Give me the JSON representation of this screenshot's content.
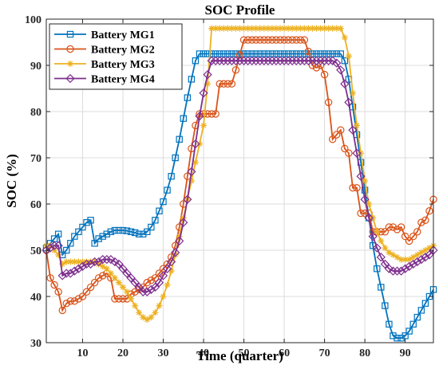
{
  "chart_data": {
    "type": "line",
    "title": "SOC Profile",
    "xlabel": "Time (quarter)",
    "ylabel": "SOC (%)",
    "xlim": [
      1,
      97
    ],
    "ylim": [
      30,
      100
    ],
    "xticks": [
      10,
      20,
      30,
      40,
      50,
      60,
      70,
      80,
      90
    ],
    "yticks": [
      30,
      40,
      50,
      60,
      70,
      80,
      90,
      100
    ],
    "grid": true,
    "legend_position": "top-left",
    "series": [
      {
        "name": "Battery MG1",
        "color": "#0072BD",
        "marker": "square",
        "keypoints": [
          [
            1,
            50.5
          ],
          [
            2,
            51.5
          ],
          [
            3,
            52.5
          ],
          [
            4,
            53.5
          ],
          [
            5,
            49
          ],
          [
            6,
            50
          ],
          [
            7,
            51.5
          ],
          [
            8,
            53
          ],
          [
            9,
            54
          ],
          [
            10,
            55
          ],
          [
            11,
            56
          ],
          [
            12,
            56.5
          ],
          [
            13,
            51.5
          ],
          [
            14,
            52.5
          ],
          [
            15,
            53
          ],
          [
            16,
            53.5
          ],
          [
            17,
            54
          ],
          [
            18,
            54.3
          ],
          [
            19,
            54.3
          ],
          [
            20,
            54.3
          ],
          [
            21,
            54.2
          ],
          [
            22,
            54
          ],
          [
            23,
            53.8
          ],
          [
            24,
            53.5
          ],
          [
            25,
            53.5
          ],
          [
            26,
            54
          ],
          [
            27,
            55
          ],
          [
            28,
            56.5
          ],
          [
            29,
            58.5
          ],
          [
            30,
            60.5
          ],
          [
            31,
            63
          ],
          [
            32,
            66
          ],
          [
            33,
            70
          ],
          [
            34,
            74
          ],
          [
            35,
            78.5
          ],
          [
            36,
            83
          ],
          [
            37,
            87
          ],
          [
            38,
            91
          ],
          [
            39,
            92.5
          ],
          [
            40,
            92.5
          ],
          [
            74,
            92.5
          ],
          [
            75,
            91
          ],
          [
            76,
            87
          ],
          [
            77,
            81
          ],
          [
            78,
            75
          ],
          [
            79,
            69
          ],
          [
            80,
            63
          ],
          [
            81,
            57
          ],
          [
            82,
            51
          ],
          [
            83,
            46
          ],
          [
            84,
            42
          ],
          [
            85,
            38
          ],
          [
            86,
            34
          ],
          [
            87,
            31.5
          ],
          [
            88,
            31
          ],
          [
            89,
            31
          ],
          [
            90,
            31.5
          ],
          [
            91,
            32.5
          ],
          [
            92,
            34
          ],
          [
            93,
            35.5
          ],
          [
            94,
            37
          ],
          [
            95,
            38.5
          ],
          [
            96,
            40
          ],
          [
            97,
            41.5
          ]
        ]
      },
      {
        "name": "Battery MG2",
        "color": "#D95319",
        "marker": "circle",
        "keypoints": [
          [
            1,
            50
          ],
          [
            2,
            44
          ],
          [
            3,
            42.5
          ],
          [
            4,
            41
          ],
          [
            5,
            37
          ],
          [
            6,
            38.5
          ],
          [
            7,
            39
          ],
          [
            8,
            39
          ],
          [
            9,
            39.5
          ],
          [
            10,
            40
          ],
          [
            11,
            41
          ],
          [
            12,
            42
          ],
          [
            13,
            43
          ],
          [
            14,
            44
          ],
          [
            15,
            44.5
          ],
          [
            16,
            45
          ],
          [
            17,
            44
          ],
          [
            18,
            39.5
          ],
          [
            19,
            39.5
          ],
          [
            20,
            39.5
          ],
          [
            21,
            39.5
          ],
          [
            22,
            40.5
          ],
          [
            23,
            41
          ],
          [
            24,
            41.5
          ],
          [
            25,
            42
          ],
          [
            26,
            43
          ],
          [
            27,
            43.5
          ],
          [
            28,
            44
          ],
          [
            29,
            45
          ],
          [
            30,
            46
          ],
          [
            31,
            47
          ],
          [
            32,
            48.5
          ],
          [
            33,
            51
          ],
          [
            34,
            55
          ],
          [
            35,
            60
          ],
          [
            36,
            66
          ],
          [
            37,
            72
          ],
          [
            38,
            77
          ],
          [
            39,
            79.5
          ],
          [
            43,
            79.5
          ],
          [
            44,
            86
          ],
          [
            47,
            86
          ],
          [
            48,
            89
          ],
          [
            50,
            95.5
          ],
          [
            65,
            95.5
          ],
          [
            66,
            93
          ],
          [
            67,
            90
          ],
          [
            68,
            89.5
          ],
          [
            69,
            90
          ],
          [
            70,
            88
          ],
          [
            71,
            82
          ],
          [
            72,
            74
          ],
          [
            73,
            75
          ],
          [
            74,
            76
          ],
          [
            75,
            72
          ],
          [
            76,
            71
          ],
          [
            77,
            63.5
          ],
          [
            78,
            63.5
          ],
          [
            79,
            58
          ],
          [
            81,
            58
          ],
          [
            82,
            54
          ],
          [
            85,
            54
          ],
          [
            86,
            55
          ],
          [
            87,
            55
          ],
          [
            88,
            54.5
          ],
          [
            89,
            55
          ],
          [
            90,
            53
          ],
          [
            91,
            52
          ],
          [
            92,
            53
          ],
          [
            93,
            54
          ],
          [
            94,
            56
          ],
          [
            95,
            56.5
          ],
          [
            96,
            58.5
          ],
          [
            97,
            61
          ]
        ]
      },
      {
        "name": "Battery MG3",
        "color": "#EDB120",
        "marker": "asterisk",
        "keypoints": [
          [
            1,
            51
          ],
          [
            2,
            51
          ],
          [
            3,
            50
          ],
          [
            4,
            49
          ],
          [
            5,
            47
          ],
          [
            6,
            47.5
          ],
          [
            7,
            47.5
          ],
          [
            8,
            47.5
          ],
          [
            9,
            47.5
          ],
          [
            10,
            47.5
          ],
          [
            11,
            47.5
          ],
          [
            12,
            47.5
          ],
          [
            13,
            47.5
          ],
          [
            14,
            47
          ],
          [
            15,
            46.5
          ],
          [
            16,
            46
          ],
          [
            17,
            45
          ],
          [
            18,
            44
          ],
          [
            19,
            43
          ],
          [
            20,
            42
          ],
          [
            21,
            41
          ],
          [
            22,
            39.5
          ],
          [
            23,
            38
          ],
          [
            24,
            36.5
          ],
          [
            25,
            35.5
          ],
          [
            26,
            35
          ],
          [
            27,
            35.5
          ],
          [
            28,
            36.5
          ],
          [
            29,
            38
          ],
          [
            30,
            40
          ],
          [
            31,
            42.5
          ],
          [
            32,
            45.5
          ],
          [
            33,
            49
          ],
          [
            34,
            53
          ],
          [
            35,
            57
          ],
          [
            36,
            61
          ],
          [
            37,
            65
          ],
          [
            38,
            69
          ],
          [
            39,
            73
          ],
          [
            40,
            77
          ],
          [
            41,
            86
          ],
          [
            42,
            98
          ],
          [
            74,
            98
          ],
          [
            75,
            96
          ],
          [
            76,
            92
          ],
          [
            77,
            84
          ],
          [
            78,
            77
          ],
          [
            79,
            71
          ],
          [
            80,
            65
          ],
          [
            81,
            60
          ],
          [
            82,
            57
          ],
          [
            83,
            54
          ],
          [
            84,
            52
          ],
          [
            85,
            50.5
          ],
          [
            86,
            49.5
          ],
          [
            87,
            49
          ],
          [
            88,
            48.5
          ],
          [
            89,
            48
          ],
          [
            90,
            48
          ],
          [
            91,
            48
          ],
          [
            92,
            48.5
          ],
          [
            93,
            49
          ],
          [
            94,
            49.5
          ],
          [
            95,
            50
          ],
          [
            96,
            50.5
          ],
          [
            97,
            51
          ]
        ]
      },
      {
        "name": "Battery MG4",
        "color": "#7E2F8E",
        "marker": "diamond",
        "keypoints": [
          [
            1,
            50
          ],
          [
            2,
            50.5
          ],
          [
            3,
            51
          ],
          [
            4,
            51
          ],
          [
            5,
            44.5
          ],
          [
            6,
            45
          ],
          [
            7,
            45
          ],
          [
            8,
            45.5
          ],
          [
            9,
            46
          ],
          [
            10,
            46.5
          ],
          [
            11,
            47
          ],
          [
            12,
            47
          ],
          [
            13,
            47.5
          ],
          [
            14,
            47.5
          ],
          [
            15,
            48
          ],
          [
            16,
            48
          ],
          [
            17,
            48
          ],
          [
            18,
            47.5
          ],
          [
            19,
            47
          ],
          [
            20,
            46
          ],
          [
            21,
            45
          ],
          [
            22,
            44
          ],
          [
            23,
            43
          ],
          [
            24,
            42
          ],
          [
            25,
            41
          ],
          [
            26,
            41
          ],
          [
            27,
            41.5
          ],
          [
            28,
            42
          ],
          [
            29,
            43
          ],
          [
            30,
            44.5
          ],
          [
            31,
            46
          ],
          [
            32,
            47.5
          ],
          [
            33,
            49.5
          ],
          [
            34,
            52
          ],
          [
            35,
            56
          ],
          [
            36,
            61
          ],
          [
            37,
            67
          ],
          [
            38,
            73
          ],
          [
            39,
            79
          ],
          [
            40,
            84
          ],
          [
            41,
            88
          ],
          [
            42,
            91
          ],
          [
            72,
            91
          ],
          [
            73,
            90.5
          ],
          [
            74,
            89
          ],
          [
            75,
            86
          ],
          [
            76,
            82
          ],
          [
            77,
            76
          ],
          [
            78,
            71
          ],
          [
            79,
            66
          ],
          [
            80,
            61
          ],
          [
            81,
            57
          ],
          [
            82,
            53
          ],
          [
            83,
            50.5
          ],
          [
            84,
            48.5
          ],
          [
            85,
            47
          ],
          [
            86,
            46
          ],
          [
            87,
            45.5
          ],
          [
            88,
            45.5
          ],
          [
            89,
            45.5
          ],
          [
            90,
            46
          ],
          [
            91,
            46.5
          ],
          [
            92,
            47
          ],
          [
            93,
            47.5
          ],
          [
            94,
            48
          ],
          [
            95,
            48.5
          ],
          [
            96,
            49
          ],
          [
            97,
            50
          ]
        ]
      }
    ]
  }
}
